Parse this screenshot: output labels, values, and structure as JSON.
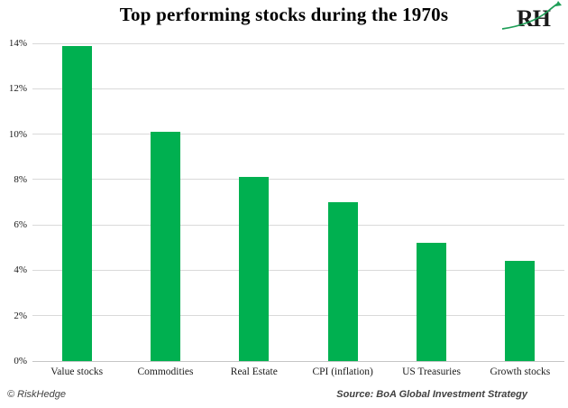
{
  "title": "Top performing stocks during the 1970s",
  "logo": {
    "text": "RH"
  },
  "chart_data": {
    "type": "bar",
    "title": "Top performing stocks during the 1970s",
    "categories": [
      "Value stocks",
      "Commodities",
      "Real Estate",
      "CPI (inflation)",
      "US Treasuries",
      "Growth stocks"
    ],
    "values": [
      13.9,
      10.1,
      8.1,
      7.0,
      5.2,
      4.4
    ],
    "xlabel": "",
    "ylabel": "",
    "ylim": [
      0,
      14
    ],
    "ytick_step": 2,
    "ytick_suffix": "%",
    "grid": true,
    "legend": "none",
    "bar_color": "#00b050",
    "gridline_color": "#d9d9d9",
    "axis_line_color": "#c6c6c6",
    "logo_vine_color": "#1e9e57"
  },
  "footer": {
    "left": "© RiskHedge",
    "right": "Source: BoA Global Investment Strategy"
  }
}
